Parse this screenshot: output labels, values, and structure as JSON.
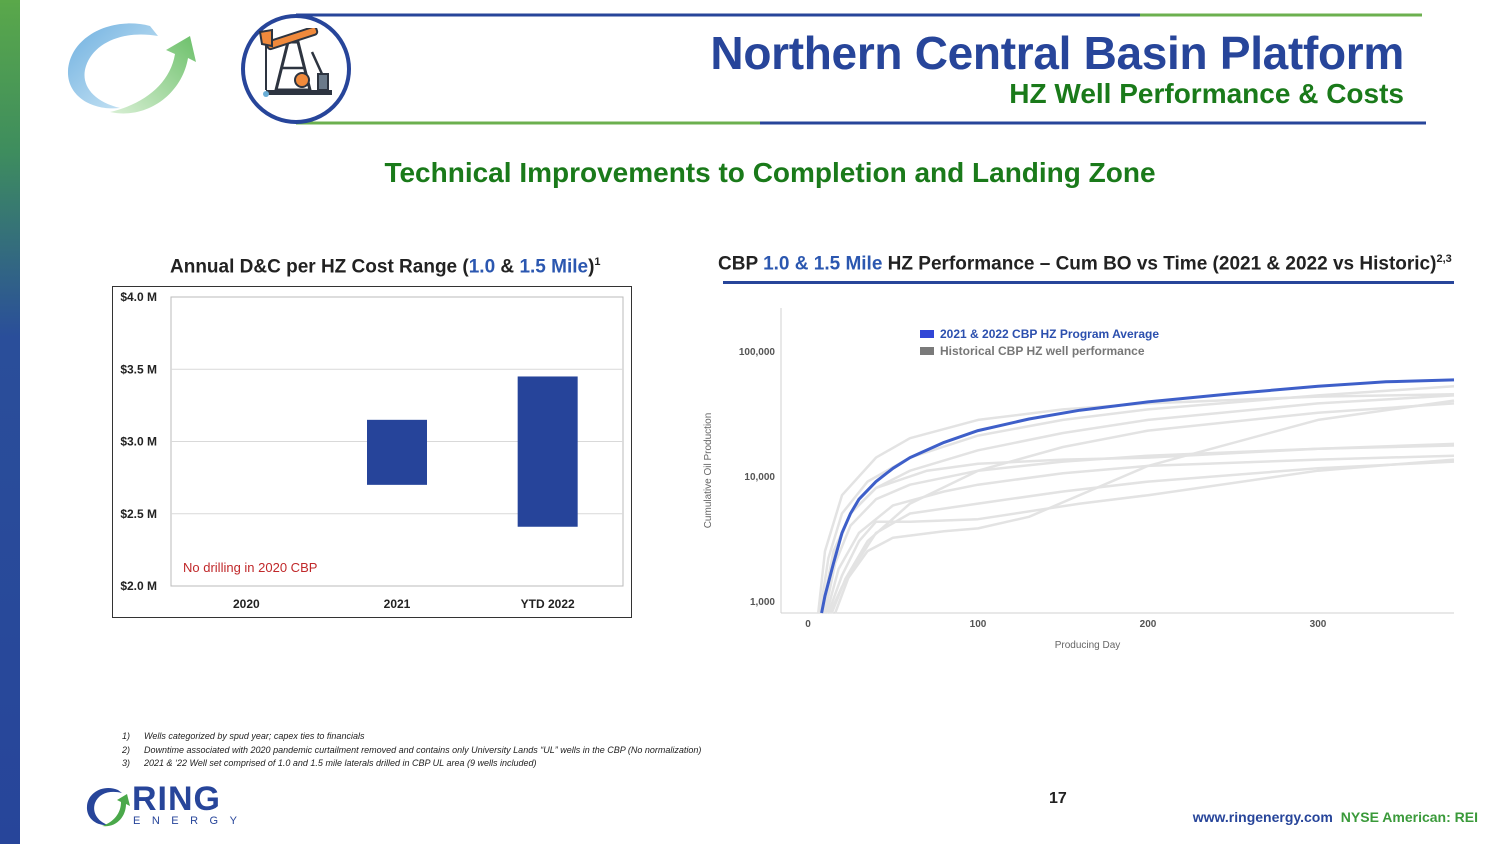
{
  "header": {
    "title": "Northern Central Basin Platform",
    "subtitle": "HZ Well Performance & Costs"
  },
  "section_heading": "Technical Improvements to Completion and Landing Zone",
  "left_chart_title": {
    "prefix": "Annual D&C per HZ Cost Range (",
    "v1": "1.0",
    "mid": " & ",
    "v2": "1.5 Mile",
    "suffix": ")",
    "sup": "1"
  },
  "right_chart_title": {
    "prefix": "CBP ",
    "blue": "1.0 & 1.5 Mile",
    "suffix": " HZ Performance – Cum BO vs Time (2021 & 2022 vs Historic)",
    "sup": "2,3"
  },
  "footnotes": [
    {
      "num": "1)",
      "text": "Wells categorized by spud year; capex ties to financials"
    },
    {
      "num": "2)",
      "text": "Downtime associated with 2020 pandemic curtailment removed and contains only University Lands “UL” wells in the CBP (No normalization)"
    },
    {
      "num": "3)",
      "text": "2021 & ‘22 Well set comprised of 1.0 and 1.5 mile laterals drilled in CBP UL area (9 wells included)"
    }
  ],
  "page_number": "17",
  "footer": {
    "website": "www.ringenergy.com",
    "ticker": "NYSE American: REI",
    "logo_name": "RING",
    "logo_sub": "ENERGY"
  },
  "colors": {
    "brand_blue": "#27459a",
    "brand_green": "#1a7a1a",
    "bar_blue": "#26449a",
    "annotation_red": "#c0282a",
    "highlight_line": "#3e5fc9",
    "historic_line": "#e3e3e3"
  },
  "icons": [
    "ring-arrow-logo-icon",
    "oil-pumpjack-icon"
  ],
  "chart_data": [
    {
      "type": "bar",
      "subtype": "floating-range",
      "categories": [
        "2020",
        "2021",
        "YTD 2022"
      ],
      "ranges": [
        null,
        [
          2.7,
          3.15
        ],
        [
          2.41,
          3.45
        ]
      ],
      "ylim": [
        2.0,
        4.0
      ],
      "yticks": [
        2.0,
        2.5,
        3.0,
        3.5,
        4.0
      ],
      "ytick_labels": [
        "$2.0 M",
        "$2.5 M",
        "$3.0 M",
        "$3.5 M",
        "$4.0 M"
      ],
      "annotation": "No drilling in 2020 CBP",
      "grid": true
    },
    {
      "type": "line",
      "xlabel": "Producing Day",
      "ylabel": "Cumulative Oil Production",
      "yscale": "log",
      "xlim": [
        0,
        380
      ],
      "ylim": [
        800,
        220000
      ],
      "xticks": [
        0,
        100,
        200,
        300
      ],
      "xtick_labels": [
        "0",
        "100",
        "200",
        "300"
      ],
      "yticks": [
        1000,
        10000,
        100000
      ],
      "ytick_labels": [
        "1,000",
        "10,000",
        "100,000"
      ],
      "legend": "top-center",
      "series": [
        {
          "name": "2021 & 2022 CBP HZ Program Average",
          "highlight": true,
          "x": [
            8,
            10,
            15,
            20,
            25,
            30,
            40,
            50,
            60,
            80,
            100,
            130,
            160,
            200,
            250,
            300,
            340,
            380
          ],
          "y": [
            800,
            1100,
            2000,
            3500,
            5000,
            6500,
            9000,
            11500,
            14000,
            18500,
            23000,
            28500,
            33500,
            39000,
            45500,
            52000,
            56500,
            58500
          ]
        },
        {
          "name": "Historical CBP HZ well performance",
          "x": [
            6,
            10,
            20,
            40,
            60,
            100,
            150,
            200,
            300,
            380
          ],
          "y": [
            800,
            2500,
            7000,
            14000,
            20000,
            28000,
            34000,
            38000,
            43000,
            45000
          ]
        },
        {
          "x": [
            7,
            12,
            20,
            35,
            60,
            100,
            150,
            200,
            300,
            380
          ],
          "y": [
            800,
            2200,
            5000,
            9000,
            14000,
            21000,
            28000,
            34000,
            44000,
            52000
          ]
        },
        {
          "x": [
            8,
            15,
            25,
            40,
            60,
            100,
            150,
            200,
            300,
            380
          ],
          "y": [
            800,
            2500,
            5000,
            8000,
            11000,
            16000,
            22000,
            28000,
            38000,
            44000
          ]
        },
        {
          "x": [
            10,
            16,
            25,
            40,
            60,
            100,
            150,
            200,
            300,
            380
          ],
          "y": [
            800,
            2000,
            4000,
            6500,
            8500,
            11000,
            13000,
            14500,
            16500,
            17500
          ]
        },
        {
          "x": [
            11,
            18,
            30,
            50,
            80,
            100,
            150,
            200,
            300,
            380
          ],
          "y": [
            800,
            1800,
            3500,
            5800,
            7500,
            8500,
            10500,
            12000,
            13500,
            14500
          ]
        },
        {
          "x": [
            12,
            20,
            30,
            40,
            60,
            100,
            160,
            200,
            300,
            380
          ],
          "y": [
            800,
            1600,
            3000,
            4300,
            4300,
            4500,
            6000,
            7000,
            11000,
            13500
          ]
        },
        {
          "x": [
            13,
            20,
            35,
            50,
            80,
            100,
            130,
            200,
            300,
            380
          ],
          "y": [
            800,
            1300,
            2500,
            3200,
            3600,
            3800,
            4700,
            12000,
            28000,
            40000
          ]
        },
        {
          "x": [
            14,
            22,
            35,
            60,
            100,
            150,
            200,
            300,
            380
          ],
          "y": [
            800,
            1500,
            3000,
            6000,
            11000,
            17000,
            23000,
            32000,
            38000
          ]
        },
        {
          "x": [
            16,
            25,
            40,
            60,
            100,
            150,
            200,
            300,
            380
          ],
          "y": [
            800,
            1700,
            3500,
            5000,
            6000,
            7500,
            9000,
            11500,
            13000
          ]
        },
        {
          "x": [
            9,
            15,
            25,
            40,
            70,
            100,
            150,
            200,
            300,
            380
          ],
          "y": [
            800,
            2300,
            5000,
            8000,
            11000,
            12500,
            13500,
            14000,
            16500,
            18000
          ]
        }
      ]
    }
  ]
}
